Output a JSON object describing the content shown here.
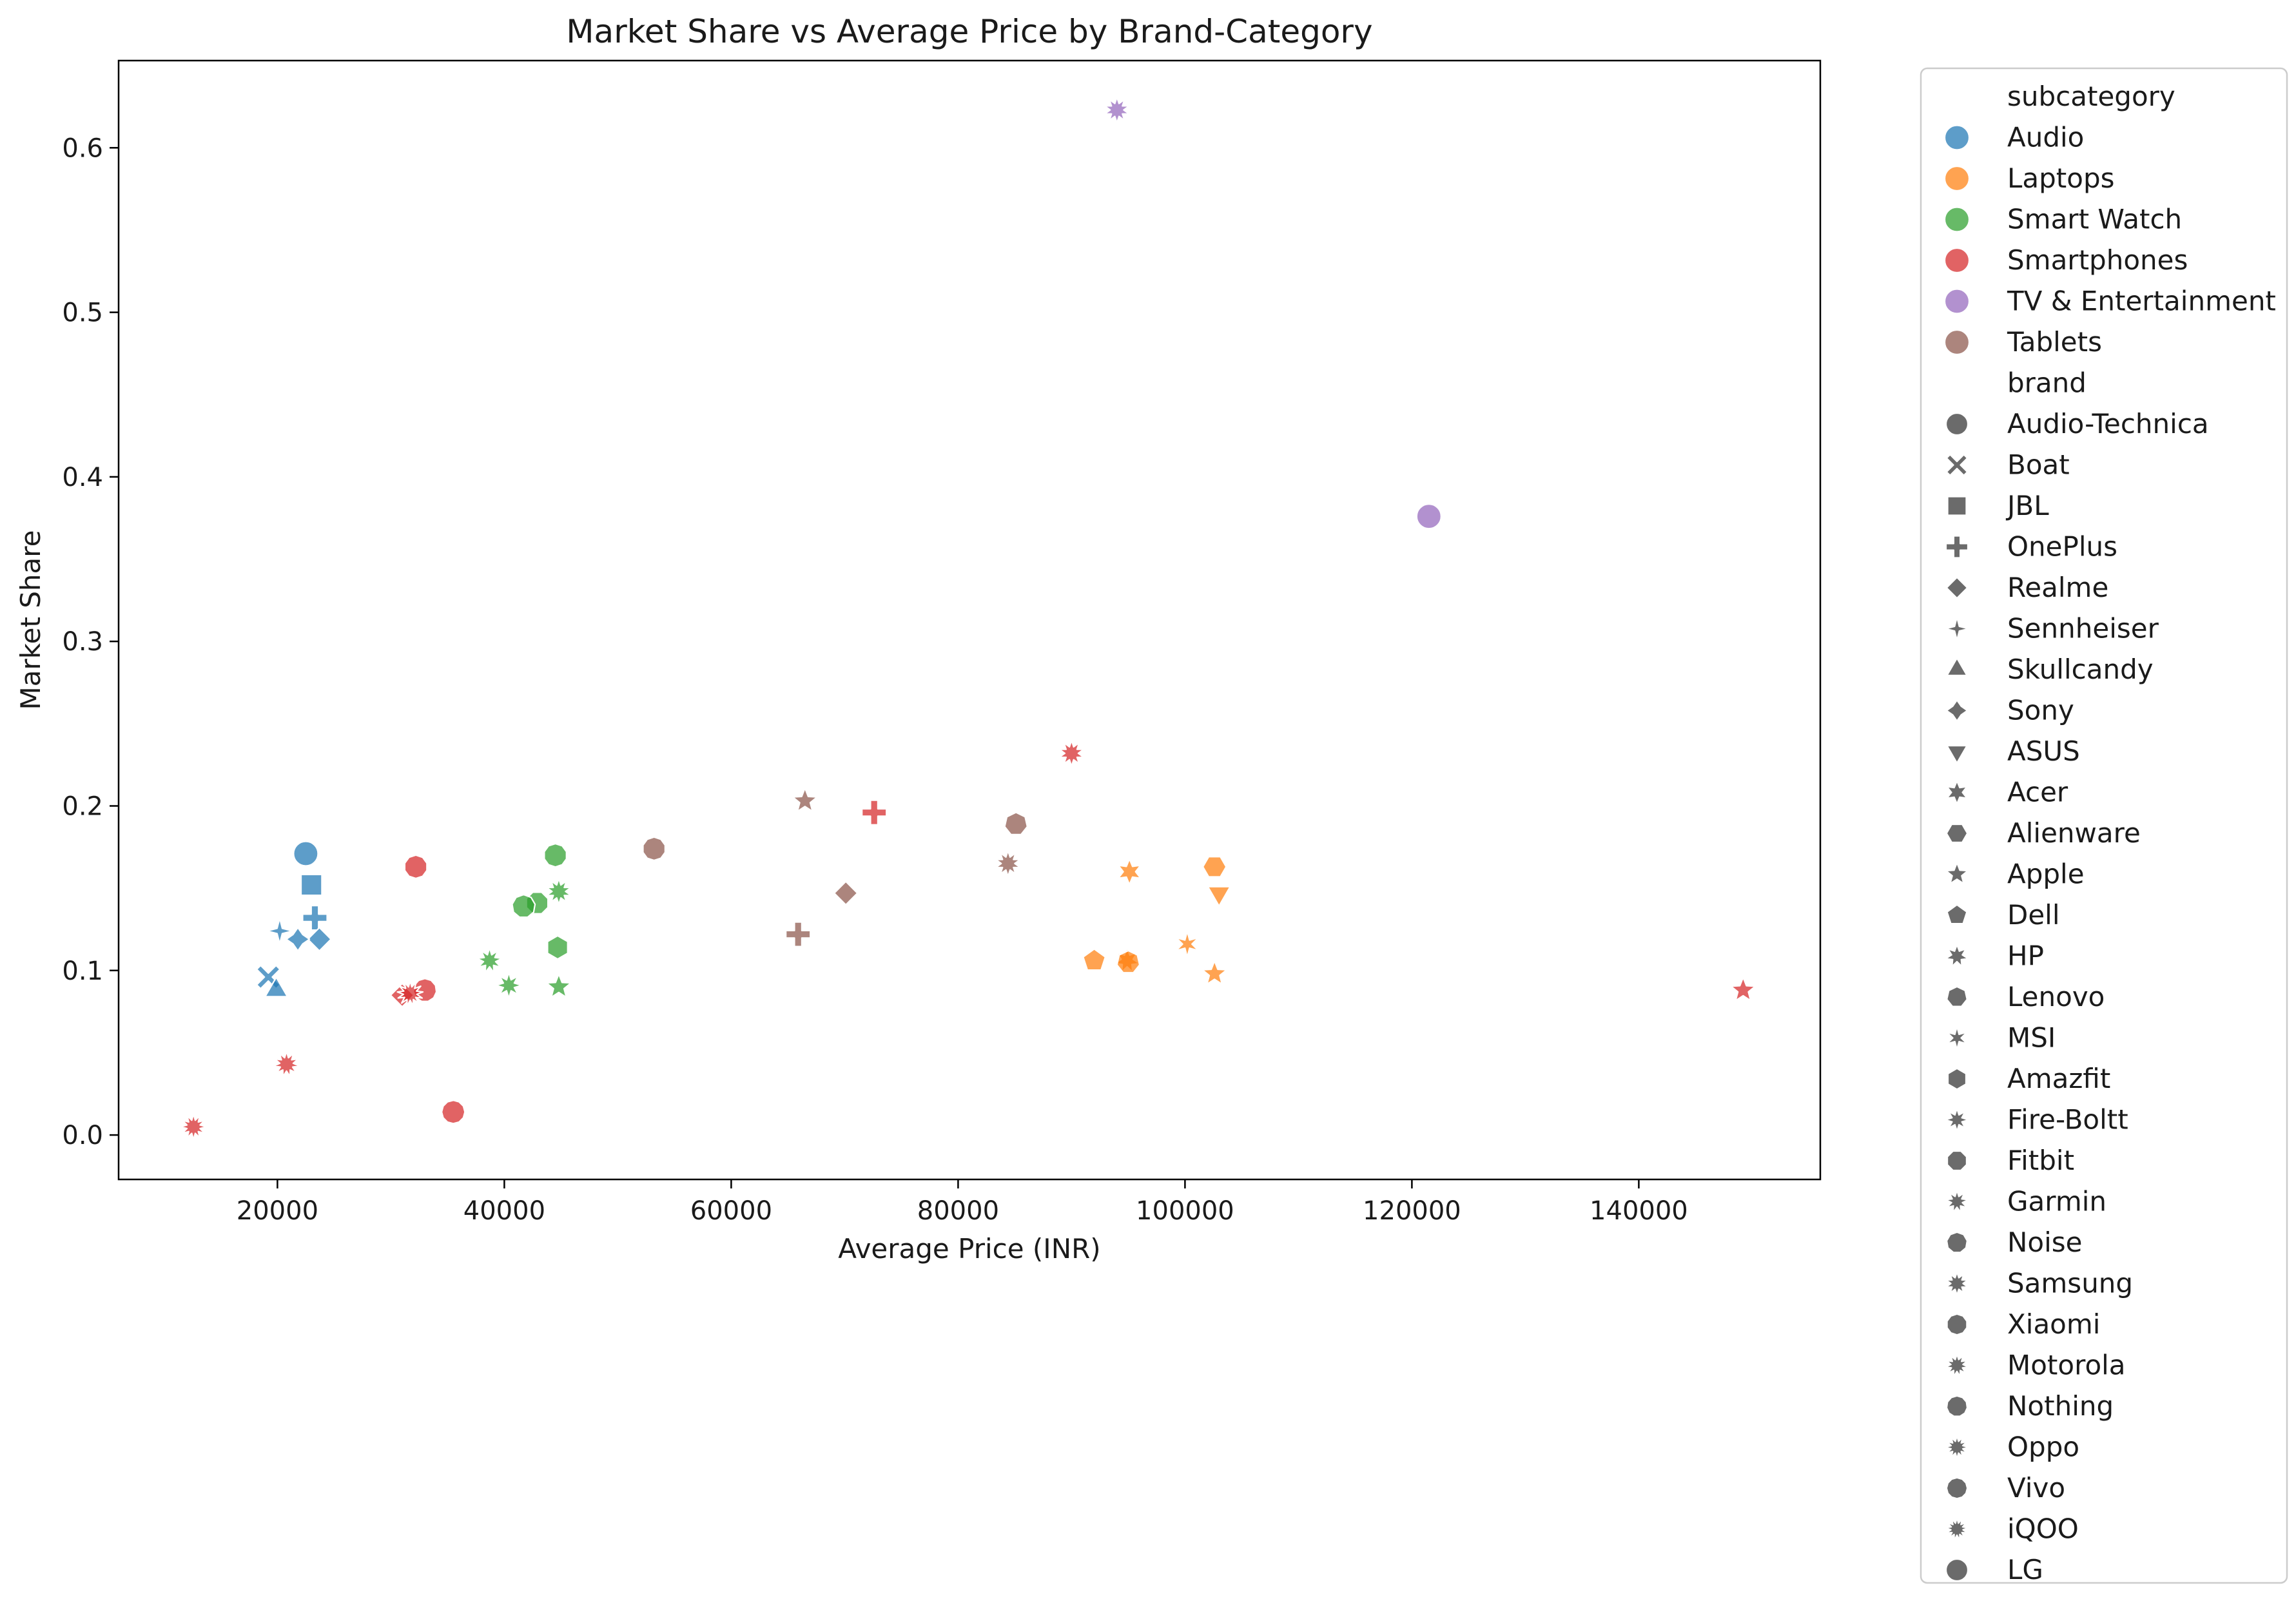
{
  "chart_data": {
    "type": "scatter",
    "title": "Market Share vs Average Price by Brand-Category",
    "xlabel": "Average Price (INR)",
    "ylabel": "Market Share",
    "xlim": [
      6000,
      156000
    ],
    "ylim": [
      -0.027,
      0.653
    ],
    "xticks": [
      20000,
      40000,
      60000,
      80000,
      100000,
      120000,
      140000
    ],
    "xtick_labels": [
      "20000",
      "40000",
      "60000",
      "80000",
      "100000",
      "120000",
      "140000"
    ],
    "yticks": [
      0.0,
      0.1,
      0.2,
      0.3,
      0.4,
      0.5,
      0.6
    ],
    "ytick_labels": [
      "0.0",
      "0.1",
      "0.2",
      "0.3",
      "0.4",
      "0.5",
      "0.6"
    ],
    "grid": false,
    "legend_position": "outside-right",
    "hue_title": "subcategory",
    "style_title": "brand",
    "subcategories": [
      {
        "name": "Audio",
        "color": "#1f77b4"
      },
      {
        "name": "Laptops",
        "color": "#ff7f0e"
      },
      {
        "name": "Smart Watch",
        "color": "#2ca02c"
      },
      {
        "name": "Smartphones",
        "color": "#d62728"
      },
      {
        "name": "TV & Entertainment",
        "color": "#9467bd"
      },
      {
        "name": "Tablets",
        "color": "#8c564b"
      }
    ],
    "brands": [
      {
        "name": "Audio-Technica",
        "marker": "circle"
      },
      {
        "name": "Boat",
        "marker": "x"
      },
      {
        "name": "JBL",
        "marker": "square"
      },
      {
        "name": "OnePlus",
        "marker": "plus"
      },
      {
        "name": "Realme",
        "marker": "diamond"
      },
      {
        "name": "Sennheiser",
        "marker": "star4"
      },
      {
        "name": "Skullcandy",
        "marker": "triangle-up"
      },
      {
        "name": "Sony",
        "marker": "star4-fat"
      },
      {
        "name": "ASUS",
        "marker": "triangle-down"
      },
      {
        "name": "Acer",
        "marker": "star6"
      },
      {
        "name": "Alienware",
        "marker": "hexagon"
      },
      {
        "name": "Apple",
        "marker": "star5"
      },
      {
        "name": "Dell",
        "marker": "pentagon"
      },
      {
        "name": "HP",
        "marker": "star7"
      },
      {
        "name": "Lenovo",
        "marker": "heptagon"
      },
      {
        "name": "MSI",
        "marker": "star6-thin"
      },
      {
        "name": "Amazfit",
        "marker": "hexagon-tall"
      },
      {
        "name": "Fire-Boltt",
        "marker": "star8"
      },
      {
        "name": "Fitbit",
        "marker": "octagon"
      },
      {
        "name": "Garmin",
        "marker": "star9"
      },
      {
        "name": "Noise",
        "marker": "nonagon"
      },
      {
        "name": "Samsung",
        "marker": "star10"
      },
      {
        "name": "Xiaomi",
        "marker": "decagon"
      },
      {
        "name": "Motorola",
        "marker": "star11"
      },
      {
        "name": "Nothing",
        "marker": "hendecagon"
      },
      {
        "name": "Oppo",
        "marker": "star12"
      },
      {
        "name": "Vivo",
        "marker": "dodecagon"
      },
      {
        "name": "iQOO",
        "marker": "star13"
      },
      {
        "name": "LG",
        "marker": "circle13"
      }
    ],
    "points": [
      {
        "x": 22500,
        "y": 0.171,
        "subcategory": "Audio",
        "brand": "Audio-Technica"
      },
      {
        "x": 19200,
        "y": 0.096,
        "subcategory": "Audio",
        "brand": "Boat"
      },
      {
        "x": 23000,
        "y": 0.152,
        "subcategory": "Audio",
        "brand": "JBL"
      },
      {
        "x": 23300,
        "y": 0.132,
        "subcategory": "Audio",
        "brand": "OnePlus"
      },
      {
        "x": 23700,
        "y": 0.119,
        "subcategory": "Audio",
        "brand": "Realme"
      },
      {
        "x": 20200,
        "y": 0.124,
        "subcategory": "Audio",
        "brand": "Sennheiser"
      },
      {
        "x": 19900,
        "y": 0.088,
        "subcategory": "Audio",
        "brand": "Skullcandy"
      },
      {
        "x": 21800,
        "y": 0.119,
        "subcategory": "Audio",
        "brand": "Sony"
      },
      {
        "x": 103000,
        "y": 0.147,
        "subcategory": "Laptops",
        "brand": "ASUS"
      },
      {
        "x": 95100,
        "y": 0.16,
        "subcategory": "Laptops",
        "brand": "Acer"
      },
      {
        "x": 102600,
        "y": 0.163,
        "subcategory": "Laptops",
        "brand": "Alienware"
      },
      {
        "x": 102600,
        "y": 0.098,
        "subcategory": "Laptops",
        "brand": "Apple"
      },
      {
        "x": 92000,
        "y": 0.106,
        "subcategory": "Laptops",
        "brand": "Dell"
      },
      {
        "x": 94900,
        "y": 0.106,
        "subcategory": "Laptops",
        "brand": "HP"
      },
      {
        "x": 95000,
        "y": 0.105,
        "subcategory": "Laptops",
        "brand": "Lenovo"
      },
      {
        "x": 100200,
        "y": 0.116,
        "subcategory": "Laptops",
        "brand": "MSI"
      },
      {
        "x": 44700,
        "y": 0.114,
        "subcategory": "Smart Watch",
        "brand": "Amazfit"
      },
      {
        "x": 44800,
        "y": 0.09,
        "subcategory": "Smart Watch",
        "brand": "Apple"
      },
      {
        "x": 40400,
        "y": 0.091,
        "subcategory": "Smart Watch",
        "brand": "Fire-Boltt"
      },
      {
        "x": 42900,
        "y": 0.141,
        "subcategory": "Smart Watch",
        "brand": "Fitbit"
      },
      {
        "x": 38700,
        "y": 0.106,
        "subcategory": "Smart Watch",
        "brand": "Garmin"
      },
      {
        "x": 41700,
        "y": 0.139,
        "subcategory": "Smart Watch",
        "brand": "Noise"
      },
      {
        "x": 44800,
        "y": 0.148,
        "subcategory": "Smart Watch",
        "brand": "Samsung"
      },
      {
        "x": 44500,
        "y": 0.17,
        "subcategory": "Smart Watch",
        "brand": "Xiaomi"
      },
      {
        "x": 149200,
        "y": 0.088,
        "subcategory": "Smartphones",
        "brand": "Apple"
      },
      {
        "x": 90000,
        "y": 0.232,
        "subcategory": "Smartphones",
        "brand": "Samsung"
      },
      {
        "x": 72600,
        "y": 0.196,
        "subcategory": "Smartphones",
        "brand": "OnePlus"
      },
      {
        "x": 31000,
        "y": 0.085,
        "subcategory": "Smartphones",
        "brand": "Realme"
      },
      {
        "x": 32200,
        "y": 0.163,
        "subcategory": "Smartphones",
        "brand": "Xiaomi"
      },
      {
        "x": 20800,
        "y": 0.043,
        "subcategory": "Smartphones",
        "brand": "Motorola"
      },
      {
        "x": 33000,
        "y": 0.088,
        "subcategory": "Smartphones",
        "brand": "Nothing"
      },
      {
        "x": 12600,
        "y": 0.005,
        "subcategory": "Smartphones",
        "brand": "Oppo"
      },
      {
        "x": 35500,
        "y": 0.014,
        "subcategory": "Smartphones",
        "brand": "Vivo"
      },
      {
        "x": 31700,
        "y": 0.086,
        "subcategory": "Smartphones",
        "brand": "iQOO"
      },
      {
        "x": 94000,
        "y": 0.623,
        "subcategory": "TV & Entertainment",
        "brand": "Samsung"
      },
      {
        "x": 121500,
        "y": 0.376,
        "subcategory": "TV & Entertainment",
        "brand": "LG"
      },
      {
        "x": 66500,
        "y": 0.203,
        "subcategory": "Tablets",
        "brand": "Apple"
      },
      {
        "x": 65900,
        "y": 0.122,
        "subcategory": "Tablets",
        "brand": "OnePlus"
      },
      {
        "x": 70100,
        "y": 0.147,
        "subcategory": "Tablets",
        "brand": "Realme"
      },
      {
        "x": 84400,
        "y": 0.165,
        "subcategory": "Tablets",
        "brand": "Samsung"
      },
      {
        "x": 85100,
        "y": 0.189,
        "subcategory": "Tablets",
        "brand": "Lenovo"
      },
      {
        "x": 53200,
        "y": 0.174,
        "subcategory": "Tablets",
        "brand": "Xiaomi"
      }
    ]
  }
}
